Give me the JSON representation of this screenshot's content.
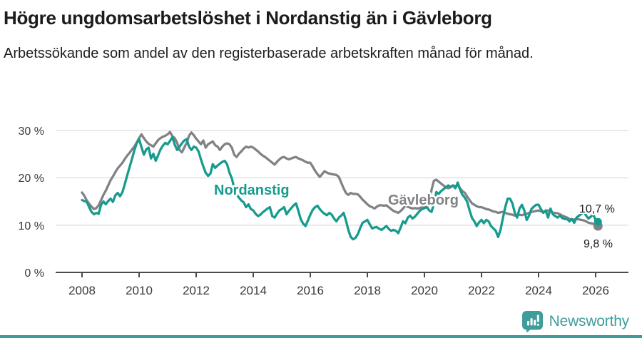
{
  "header": {
    "title": "Högre ungdomsarbetslöshet i Nordanstig än i Gävleborg",
    "subtitle": "Arbetssökande som andel av den registerbaserade arbetskraften månad för månad."
  },
  "chart_data": {
    "type": "line",
    "title": "Högre ungdomsarbetslöshet i Nordanstig än i Gävleborg",
    "subtitle": "Arbetssökande som andel av den registerbaserade arbetskraften månad för månad.",
    "x_unit": "month",
    "x_start_year": 2008,
    "x_months_per_point": 1,
    "ylim": [
      0,
      32
    ],
    "grid": "horizontal",
    "legend": "inline-labels",
    "y_ticks": [
      {
        "value": 30,
        "label": "30 %"
      },
      {
        "value": 20,
        "label": "20 %"
      },
      {
        "value": 10,
        "label": "10 %"
      },
      {
        "value": 0,
        "label": "0 %"
      }
    ],
    "x_ticks": [
      {
        "year": 2008,
        "label": "2008"
      },
      {
        "year": 2010,
        "label": "2010"
      },
      {
        "year": 2012,
        "label": "2012"
      },
      {
        "year": 2014,
        "label": "2014"
      },
      {
        "year": 2016,
        "label": "2016"
      },
      {
        "year": 2018,
        "label": "2018"
      },
      {
        "year": 2020,
        "label": "2020"
      },
      {
        "year": 2022,
        "label": "2022"
      },
      {
        "year": 2024,
        "label": "2024"
      },
      {
        "year": 2026,
        "label": "2026"
      }
    ],
    "series": [
      {
        "name": "Gävleborg",
        "color": "#818286",
        "end_label": "9,8 %",
        "end_value": 9.8,
        "values": [
          16.9,
          16.2,
          15.2,
          14.5,
          13.9,
          13.4,
          13.6,
          14.2,
          15.3,
          16.4,
          17.3,
          18.4,
          19.5,
          20.3,
          21.2,
          22.0,
          22.6,
          23.2,
          24.0,
          24.7,
          25.3,
          26.0,
          26.6,
          27.5,
          28.4,
          29.2,
          28.4,
          27.7,
          27.2,
          26.9,
          26.6,
          27.3,
          28.0,
          28.4,
          28.7,
          28.9,
          29.2,
          29.7,
          28.8,
          28.4,
          27.4,
          25.9,
          25.4,
          26.4,
          27.4,
          28.9,
          29.6,
          29.0,
          28.3,
          27.7,
          27.1,
          27.9,
          26.4,
          27.1,
          27.4,
          27.7,
          26.9,
          26.6,
          25.9,
          26.6,
          27.1,
          27.3,
          27.1,
          26.4,
          24.9,
          24.4,
          25.1,
          25.6,
          26.2,
          26.6,
          26.4,
          26.6,
          26.4,
          26.0,
          25.6,
          25.1,
          24.7,
          24.4,
          24.0,
          23.6,
          23.2,
          22.8,
          23.4,
          23.9,
          24.3,
          24.4,
          24.1,
          23.9,
          24.1,
          24.3,
          24.4,
          24.1,
          23.9,
          23.7,
          23.4,
          23.2,
          23.2,
          22.4,
          21.5,
          20.8,
          20.2,
          20.8,
          21.4,
          21.1,
          20.9,
          20.8,
          20.7,
          20.6,
          20.2,
          19.0,
          17.8,
          16.8,
          16.4,
          16.8,
          16.6,
          16.6,
          16.5,
          16.0,
          15.4,
          14.9,
          14.4,
          14.0,
          13.8,
          13.5,
          13.9,
          14.2,
          14.2,
          14.1,
          14.2,
          13.8,
          13.4,
          13.0,
          12.8,
          12.6,
          13.0,
          13.5,
          14.1,
          13.9,
          13.7,
          13.5,
          13.6,
          13.5,
          13.6,
          13.8,
          14.0,
          13.8,
          14.5,
          17.5,
          19.4,
          19.6,
          19.2,
          18.8,
          18.4,
          18.0,
          17.8,
          18.0,
          18.4,
          18.2,
          18.5,
          17.8,
          17.2,
          16.8,
          16.0,
          15.3,
          14.6,
          14.3,
          14.0,
          13.8,
          13.8,
          13.6,
          13.4,
          13.3,
          13.1,
          12.9,
          12.8,
          12.6,
          12.7,
          12.8,
          12.6,
          12.4,
          12.3,
          12.2,
          12.0,
          12.1,
          12.2,
          12.1,
          12.3,
          12.4,
          12.6,
          12.8,
          12.9,
          13.0,
          13.1,
          12.9,
          12.8,
          13.0,
          13.1,
          12.9,
          12.6,
          12.6,
          12.5,
          12.3,
          12.0,
          11.8,
          11.6,
          11.3,
          11.1,
          11.2,
          11.3,
          11.2,
          11.1,
          11.0,
          10.8,
          10.5,
          10.4,
          10.3,
          10.0,
          9.8
        ]
      },
      {
        "name": "Nordanstig",
        "color": "#169b8e",
        "end_label": "10,7 %",
        "end_value": 10.7,
        "values": [
          15.3,
          15.1,
          14.9,
          13.8,
          12.8,
          12.3,
          12.6,
          12.4,
          14.3,
          15.0,
          14.4,
          15.1,
          15.6,
          14.9,
          16.3,
          16.8,
          16.1,
          17.0,
          18.7,
          20.5,
          22.3,
          24.0,
          25.8,
          27.3,
          28.2,
          26.5,
          24.9,
          26.0,
          26.4,
          24.1,
          25.1,
          23.6,
          24.8,
          26.0,
          26.8,
          27.4,
          27.1,
          27.8,
          28.6,
          27.0,
          25.9,
          26.6,
          27.3,
          27.9,
          28.2,
          26.6,
          25.9,
          26.6,
          26.4,
          25.6,
          23.9,
          22.4,
          21.1,
          20.4,
          20.9,
          22.9,
          22.1,
          22.6,
          23.0,
          23.4,
          23.6,
          22.9,
          21.1,
          19.9,
          17.9,
          16.5,
          15.8,
          15.2,
          14.8,
          13.8,
          14.4,
          13.4,
          13.1,
          12.4,
          11.9,
          12.2,
          12.7,
          13.1,
          13.5,
          13.8,
          11.9,
          11.6,
          12.4,
          13.1,
          13.4,
          13.8,
          12.3,
          13.0,
          13.6,
          14.2,
          14.6,
          13.0,
          11.2,
          10.3,
          9.8,
          11.0,
          12.2,
          13.2,
          13.8,
          14.1,
          13.4,
          12.8,
          12.4,
          12.1,
          12.6,
          12.2,
          11.4,
          10.8,
          11.6,
          12.0,
          12.6,
          11.0,
          9.0,
          7.5,
          7.0,
          7.3,
          8.1,
          9.4,
          10.5,
          10.8,
          11.1,
          10.2,
          9.3,
          9.5,
          9.6,
          9.2,
          9.0,
          9.4,
          9.8,
          9.2,
          8.8,
          9.0,
          8.8,
          8.3,
          9.5,
          10.8,
          10.4,
          11.6,
          12.0,
          11.4,
          11.8,
          12.4,
          13.0,
          13.4,
          13.6,
          13.8,
          13.1,
          12.8,
          14.5,
          17.0,
          16.6,
          17.2,
          17.6,
          18.0,
          18.4,
          18.1,
          18.4,
          17.8,
          19.0,
          17.5,
          16.4,
          15.8,
          14.9,
          13.1,
          11.5,
          10.8,
          9.8,
          10.6,
          11.1,
          10.4,
          11.1,
          10.8,
          9.8,
          9.3,
          8.8,
          7.5,
          9.0,
          11.5,
          13.8,
          15.6,
          15.6,
          14.6,
          12.6,
          11.6,
          13.5,
          14.3,
          13.1,
          11.1,
          12.0,
          13.4,
          13.9,
          14.3,
          14.3,
          13.4,
          12.6,
          13.1,
          11.6,
          13.5,
          12.3,
          11.9,
          11.6,
          12.0,
          11.5,
          11.3,
          11.3,
          10.8,
          11.3,
          10.5,
          11.6,
          12.0,
          12.4,
          12.8,
          12.0,
          11.4,
          11.8,
          12.3,
          11.0,
          10.7
        ]
      }
    ],
    "colors": {
      "nordanstig": "#169b8e",
      "gavleborg": "#818286",
      "grid": "#e2e2e2",
      "axis": "#4b4b4b"
    }
  },
  "footer": {
    "brand": "Newsworthy",
    "logo_icon": "bar-chart-speech-bubble",
    "accent_color": "#3f9c9b"
  }
}
